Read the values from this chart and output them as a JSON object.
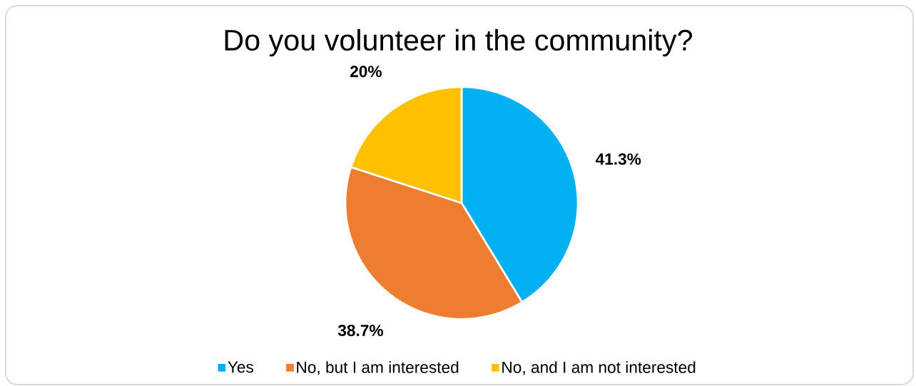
{
  "chart_data": {
    "type": "pie",
    "title": "Do you volunteer in the community?",
    "categories": [
      "Yes",
      "No, but I am interested",
      "No, and I am not interested"
    ],
    "values": [
      41.3,
      38.7,
      20
    ],
    "colors": [
      "#00b0f0",
      "#ed7d31",
      "#ffc000"
    ],
    "value_labels": [
      "41.3%",
      "38.7%",
      "20%"
    ],
    "legend": "bottom"
  }
}
